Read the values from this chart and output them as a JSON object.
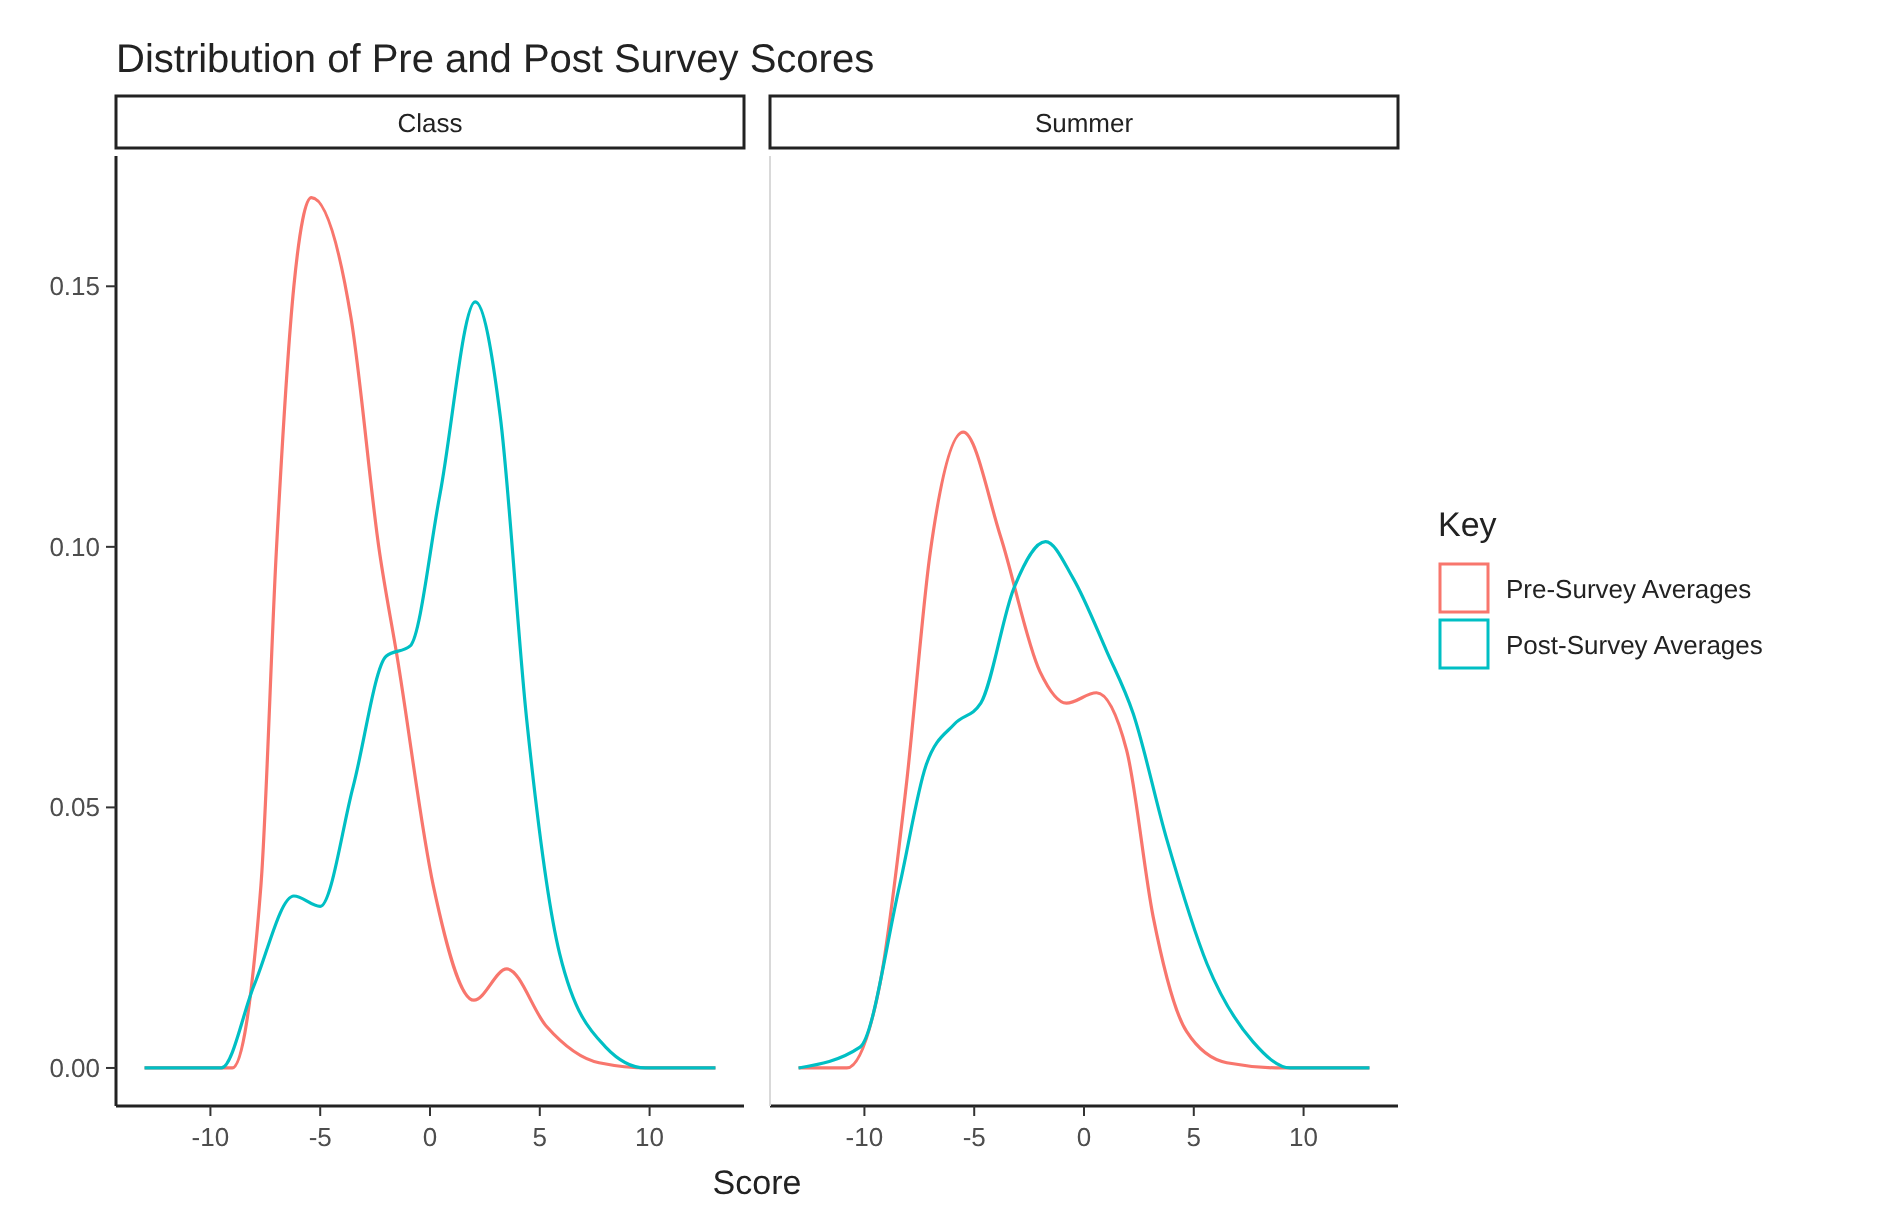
{
  "chart_data": [
    {
      "type": "line",
      "title": "Distribution of Pre and Post Survey Scores",
      "subtitle": "Class",
      "xlabel": "Score",
      "xlim": [
        -14.3,
        14.3
      ],
      "xticks": [
        -10,
        -5,
        0,
        5,
        10
      ],
      "ylim": [
        -0.0073,
        0.175
      ],
      "yticks": [
        {
          "value": 0,
          "label": "0.00"
        },
        0.05,
        {
          "value": 0.1,
          "label": "0.10"
        },
        0.15
      ],
      "grid": false,
      "marker": "none",
      "line_style": "solid",
      "legend": false,
      "series": [
        {
          "color": "#f8766d",
          "x": [
            -13,
            -10,
            -9,
            -7.7,
            -7,
            -6.2,
            -5.4,
            -3.6,
            -2.3,
            -1.5,
            0.15,
            2,
            3.5,
            5.3,
            7.7,
            10,
            13
          ],
          "values": [
            0,
            0,
            0,
            0.035,
            0.099,
            0.15,
            0.167,
            0.144,
            0.099,
            0.079,
            0.035,
            0.013,
            0.019,
            0.008,
            0.001,
            0,
            0
          ]
        },
        {
          "color": "#00bfc4",
          "x": [
            -13,
            -9.5,
            -8,
            -6.2,
            -5,
            -3.5,
            -2,
            -0.9,
            0.45,
            2.06,
            3.2,
            4.4,
            5.9,
            8,
            9.8,
            13
          ],
          "values": [
            0,
            0,
            0.016,
            0.033,
            0.031,
            0.054,
            0.079,
            0.081,
            0.11,
            0.147,
            0.125,
            0.067,
            0.022,
            0.004,
            0,
            0
          ]
        }
      ]
    },
    {
      "type": "line",
      "subtitle": "Summer",
      "xlim": [
        -14.3,
        14.3
      ],
      "xticks": [
        -10,
        -5,
        0,
        5,
        10
      ],
      "ylim": [
        -0.0073,
        0.175
      ],
      "tick_labels": "x",
      "grid": false,
      "marker": "none",
      "line_style": "solid",
      "legend": "right",
      "legend_title": "Key",
      "series": [
        {
          "name": "Pre-Survey Averages",
          "color": "#f8766d",
          "x": [
            -13,
            -10.8,
            -9.3,
            -8.1,
            -7,
            -5.5,
            -3.8,
            -2,
            -0.8,
            0.57,
            1.94,
            3.15,
            4.67,
            6.5,
            9,
            13
          ],
          "values": [
            0,
            0,
            0.016,
            0.054,
            0.099,
            0.122,
            0.102,
            0.076,
            0.07,
            0.072,
            0.061,
            0.029,
            0.007,
            0.001,
            0,
            0
          ]
        },
        {
          "name": "Post-Survey Averages",
          "color": "#00bfc4",
          "x": [
            -13,
            -10.2,
            -8.4,
            -7.2,
            -5.9,
            -4.7,
            -3.2,
            -1.75,
            -0.5,
            1.03,
            2.24,
            3.76,
            5.6,
            7.7,
            9.4,
            13
          ],
          "values": [
            0,
            0.004,
            0.035,
            0.058,
            0.066,
            0.07,
            0.092,
            0.101,
            0.094,
            0.08,
            0.068,
            0.044,
            0.02,
            0.005,
            0,
            0
          ]
        }
      ]
    }
  ]
}
